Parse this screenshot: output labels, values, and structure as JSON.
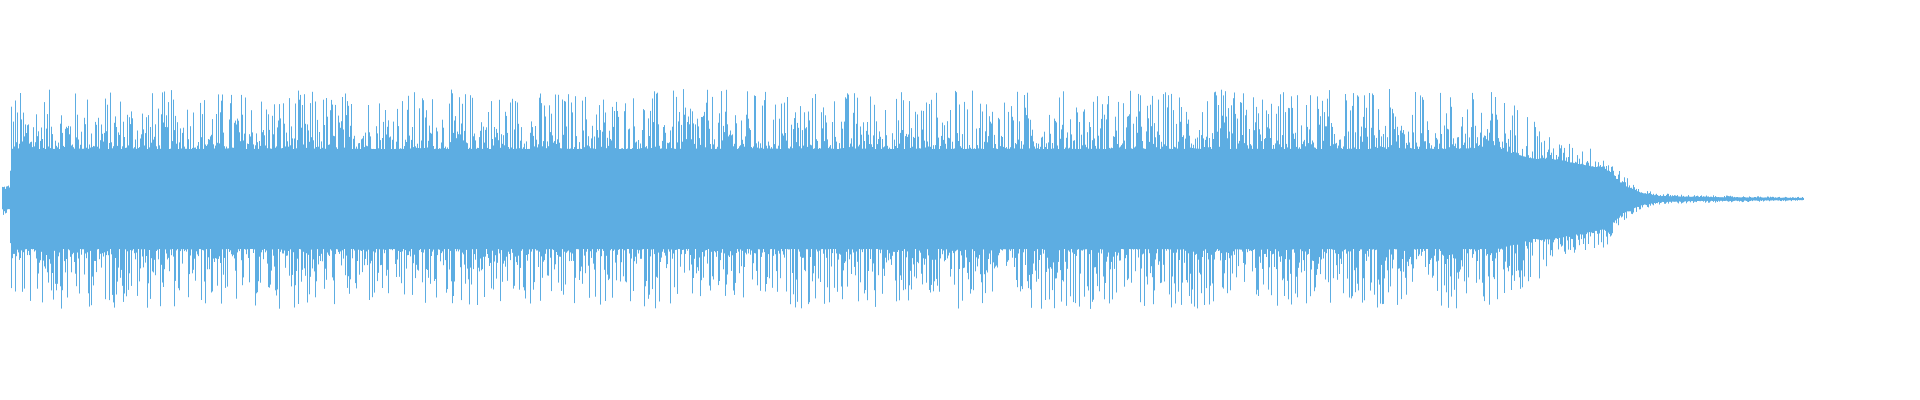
{
  "chart_data": {
    "type": "area",
    "title": "",
    "xlabel": "",
    "ylabel": "",
    "ylim": [
      -1,
      1
    ],
    "grid": false,
    "legend": "none",
    "color": "#5dade2",
    "background": "#ffffff",
    "envelope": {
      "time_percent": [
        0,
        0.4,
        0.5,
        83,
        85,
        86,
        89,
        90,
        91,
        92,
        94,
        100
      ],
      "body_amplitude": [
        0.05,
        0.05,
        0.25,
        0.25,
        0.2,
        0.2,
        0.15,
        0.07,
        0.03,
        0.015,
        0.01,
        0.005
      ],
      "peak_amplitude": [
        0.08,
        0.08,
        0.55,
        0.55,
        0.45,
        0.3,
        0.25,
        0.12,
        0.05,
        0.03,
        0.02,
        0.01
      ]
    }
  }
}
